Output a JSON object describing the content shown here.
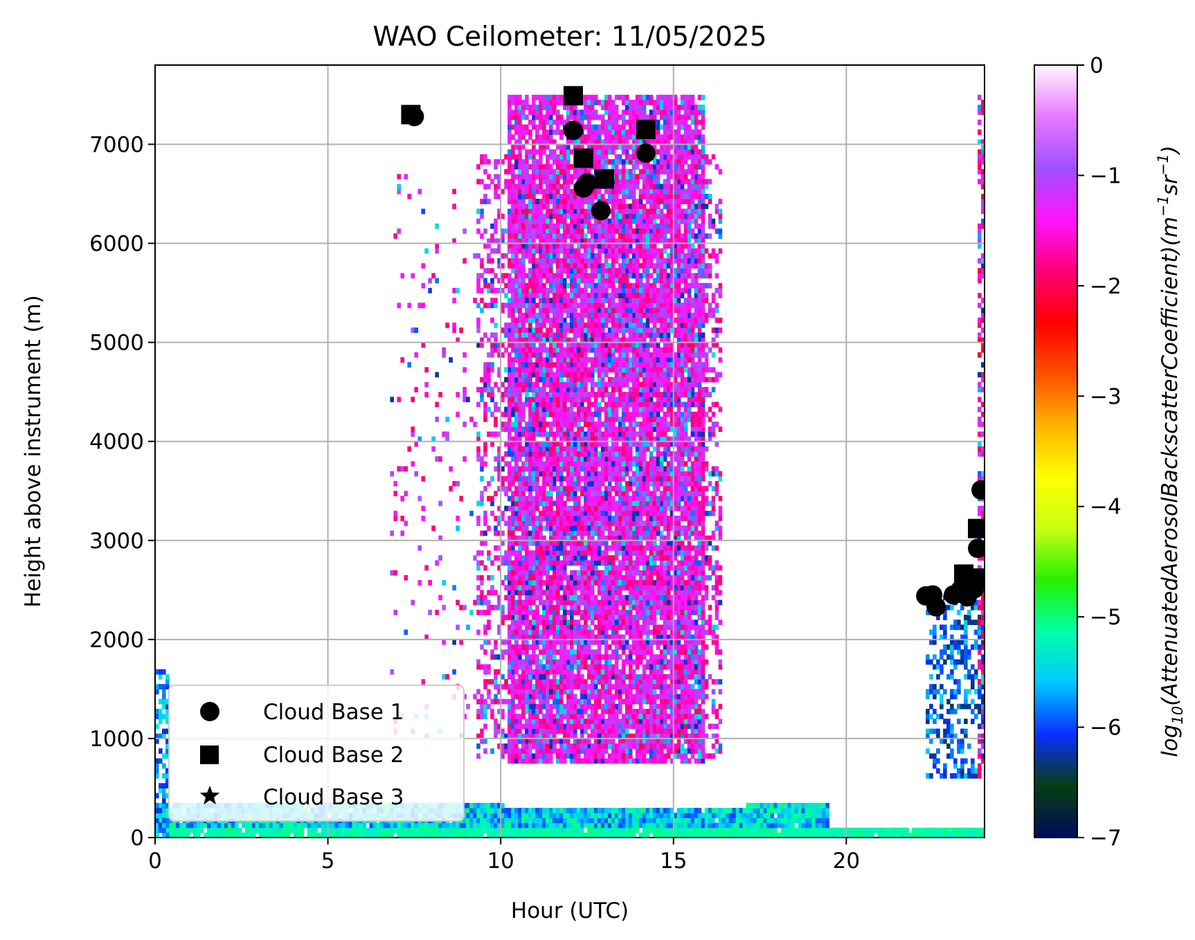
{
  "chart_data": {
    "type": "heatmap",
    "title": "WAO Ceilometer: 11/05/2025",
    "xlabel": "Hour (UTC)",
    "ylabel": "Height above instrument (m)",
    "xlim": [
      0,
      24
    ],
    "ylim": [
      0,
      7800
    ],
    "x_ticks": [
      0,
      5,
      10,
      15,
      20
    ],
    "y_ticks": [
      0,
      1000,
      2000,
      3000,
      4000,
      5000,
      6000,
      7000
    ],
    "grid": true,
    "legend": {
      "placement": "lower-left",
      "entries": [
        {
          "name": "Cloud Base 1",
          "marker": "circle-icon"
        },
        {
          "name": "Cloud Base 2",
          "marker": "square-icon"
        },
        {
          "name": "Cloud Base 3",
          "marker": "star-icon"
        }
      ]
    },
    "colorbar": {
      "label_prefix": "log",
      "label_sub": "10",
      "label_main": "(AttenuatedAerosolBackscatterCoefficient)(m",
      "label_sup1": "−1",
      "label_mid": "sr",
      "label_sup2": "−1",
      "label_end": ")",
      "range": [
        -7,
        0
      ],
      "ticks": [
        0,
        -1,
        -2,
        -3,
        -4,
        -5,
        -6,
        -7
      ],
      "tick_labels": [
        "0",
        "−1",
        "−2",
        "−3",
        "−4",
        "−5",
        "−6",
        "−7"
      ],
      "colormap_stops": [
        "#000a5e",
        "#063f10",
        "#0a2fff",
        "#00c8ff",
        "#00ffaa",
        "#25f000",
        "#c8ff14",
        "#ffff00",
        "#ffb400",
        "#ff5000",
        "#ff0000",
        "#ff0078",
        "#ff14ff",
        "#a050ff",
        "#e878ff",
        "#fff5ff"
      ]
    },
    "series": [
      {
        "name": "Cloud Base 1",
        "marker": "circle",
        "points": [
          [
            7.5,
            7280
          ],
          [
            12.1,
            7140
          ],
          [
            12.4,
            6560
          ],
          [
            12.5,
            6610
          ],
          [
            12.9,
            6330
          ],
          [
            14.2,
            6910
          ],
          [
            22.3,
            2440
          ],
          [
            22.5,
            2450
          ],
          [
            22.6,
            2330
          ],
          [
            23.1,
            2450
          ],
          [
            23.3,
            2500
          ],
          [
            23.5,
            2430
          ],
          [
            23.7,
            2510
          ],
          [
            23.8,
            2920
          ],
          [
            23.9,
            3510
          ]
        ]
      },
      {
        "name": "Cloud Base 2",
        "marker": "square",
        "points": [
          [
            7.4,
            7300
          ],
          [
            12.1,
            7490
          ],
          [
            12.4,
            6860
          ],
          [
            13.0,
            6650
          ],
          [
            14.2,
            7150
          ],
          [
            23.4,
            2660
          ],
          [
            23.6,
            2560
          ],
          [
            23.8,
            3120
          ],
          [
            23.9,
            2620
          ]
        ]
      },
      {
        "name": "Cloud Base 3",
        "marker": "star",
        "points": []
      }
    ],
    "backscatter_regions": [
      {
        "x": [
          10.2,
          15.8
        ],
        "y": [
          750,
          7500
        ],
        "level_range": [
          -1.8,
          -1.0
        ],
        "note_level": "dense"
      },
      {
        "x": [
          9.3,
          16.3
        ],
        "y": [
          800,
          6900
        ],
        "level_range": [
          -2.0,
          -0.8
        ],
        "note_level": "sparse"
      },
      {
        "x": [
          6.8,
          9.3
        ],
        "y": [
          1000,
          6700
        ],
        "level_range": [
          -2.0,
          -0.8
        ],
        "note_level": "scattered"
      },
      {
        "x": [
          0,
          24
        ],
        "y": [
          0,
          350
        ],
        "level_range": [
          -6.0,
          -5.0
        ],
        "note_level": "boundary-layer"
      },
      {
        "x": [
          0,
          0.4
        ],
        "y": [
          0,
          1700
        ],
        "level_range": [
          -6.2,
          -5.2
        ],
        "note_level": "column"
      },
      {
        "x": [
          22.3,
          24
        ],
        "y": [
          600,
          2500
        ],
        "level_range": [
          -6.4,
          -5.5
        ],
        "note_level": "low-cloud"
      },
      {
        "x": [
          23.8,
          24
        ],
        "y": [
          600,
          7500
        ],
        "level_range": [
          -2.2,
          -1.0
        ],
        "note_level": "edge"
      }
    ]
  }
}
